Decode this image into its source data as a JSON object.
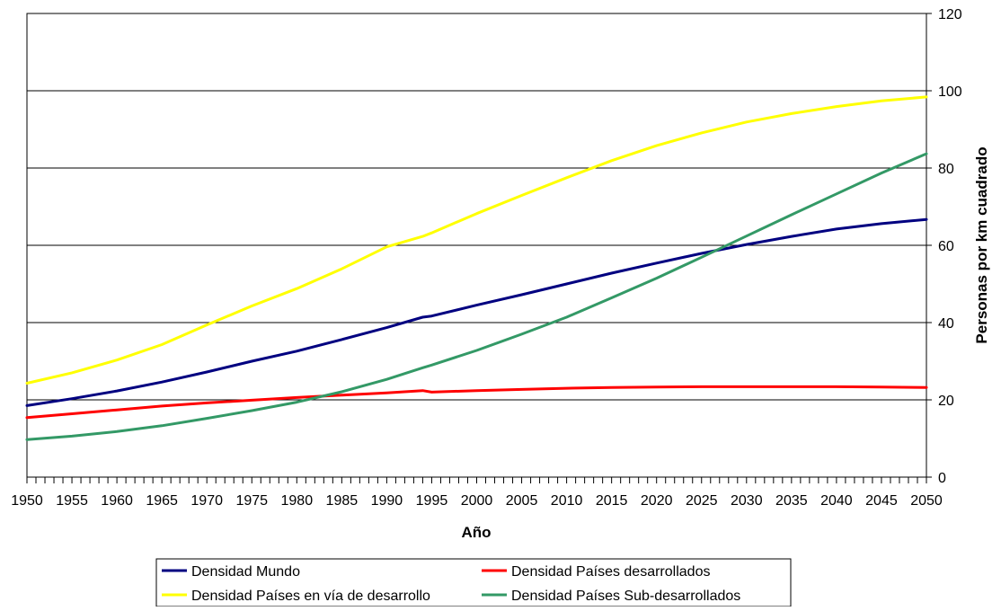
{
  "chart_data": {
    "type": "line",
    "title": "",
    "xlabel": "Año",
    "ylabel": "Personas por km cuadrado",
    "xlim": [
      1950,
      2050
    ],
    "ylim": [
      0,
      120
    ],
    "x_ticks": [
      "1950",
      "1955",
      "1960",
      "1965",
      "1970",
      "1975",
      "1980",
      "1985",
      "1990",
      "1995",
      "2000",
      "2005",
      "2010",
      "2015",
      "2020",
      "2025",
      "2030",
      "2035",
      "2040",
      "2045",
      "2050"
    ],
    "y_ticks": [
      "0",
      "20",
      "40",
      "60",
      "80",
      "100",
      "120"
    ],
    "y_axis_side": "right",
    "grid": true,
    "legend_position": "bottom",
    "x": [
      1950,
      1955,
      1960,
      1965,
      1970,
      1975,
      1980,
      1985,
      1990,
      1994,
      1995,
      2000,
      2005,
      2010,
      2015,
      2020,
      2025,
      2030,
      2035,
      2040,
      2045,
      2050
    ],
    "series": [
      {
        "name": "Densidad Mundo",
        "color": "#000080",
        "values": [
          18.5,
          20.3,
          22.3,
          24.6,
          27.2,
          30.0,
          32.6,
          35.6,
          38.7,
          41.4,
          41.7,
          44.5,
          47.2,
          50.0,
          52.8,
          55.4,
          57.9,
          60.2,
          62.3,
          64.2,
          65.6,
          66.7
        ]
      },
      {
        "name": "Densidad Países desarrollados",
        "color": "#ff0000",
        "values": [
          15.4,
          16.4,
          17.4,
          18.4,
          19.2,
          19.9,
          20.6,
          21.2,
          21.8,
          22.4,
          22.0,
          22.4,
          22.7,
          23.0,
          23.2,
          23.3,
          23.4,
          23.4,
          23.4,
          23.4,
          23.3,
          23.2
        ]
      },
      {
        "name": "Densidad Países en vía de desarrollo",
        "color": "#ffff00",
        "values": [
          24.3,
          27.0,
          30.3,
          34.3,
          39.4,
          44.3,
          48.8,
          53.9,
          59.6,
          62.3,
          63.2,
          68.2,
          72.9,
          77.5,
          81.9,
          85.8,
          89.1,
          91.9,
          94.1,
          95.9,
          97.4,
          98.4
        ]
      },
      {
        "name": "Densidad Países Sub-desarrollados",
        "color": "#339966",
        "values": [
          9.7,
          10.6,
          11.8,
          13.3,
          15.2,
          17.2,
          19.4,
          22.1,
          25.3,
          28.3,
          29.0,
          32.8,
          37.0,
          41.4,
          46.4,
          51.5,
          56.9,
          62.4,
          67.9,
          73.3,
          78.7,
          83.7
        ]
      }
    ]
  }
}
